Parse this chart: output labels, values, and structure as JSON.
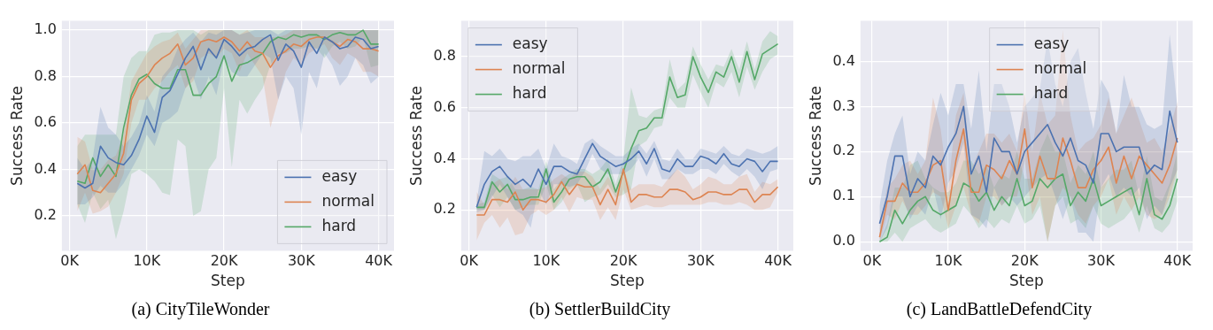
{
  "chart_data": [
    {
      "type": "line",
      "title": "(a) CityTileWonder",
      "xlabel": "Step",
      "ylabel": "Success Rate",
      "grid": true,
      "legend": "bottom right",
      "marker": "none",
      "line_style": "solid",
      "xlim": [
        -1000,
        42000
      ],
      "xticks": [
        {
          "value": 0,
          "label": "0K"
        },
        {
          "value": 10000,
          "label": "10K"
        },
        {
          "value": 20000,
          "label": "20K"
        },
        {
          "value": 30000,
          "label": "30K"
        },
        {
          "value": 40000,
          "label": "40K"
        }
      ],
      "ylim": [
        0.05,
        1.04
      ],
      "yticks": [
        0.2,
        0.4,
        0.6,
        0.8,
        {
          "value": 1,
          "label": "1.0"
        }
      ],
      "x": [
        1000,
        2000,
        3000,
        4000,
        5000,
        6000,
        7000,
        8000,
        9000,
        10000,
        11000,
        12000,
        13000,
        14000,
        15000,
        16000,
        17000,
        18000,
        19000,
        20000,
        21000,
        22000,
        23000,
        24000,
        25000,
        26000,
        27000,
        28000,
        29000,
        30000,
        31000,
        32000,
        33000,
        34000,
        35000,
        36000,
        37000,
        38000,
        39000,
        40000
      ],
      "series": [
        {
          "name": "easy",
          "color": "#4c72b0",
          "values": [
            0.34,
            0.32,
            0.34,
            0.5,
            0.45,
            0.43,
            0.42,
            0.46,
            0.53,
            0.63,
            0.56,
            0.71,
            0.74,
            0.81,
            0.88,
            0.93,
            0.83,
            0.92,
            0.88,
            0.96,
            0.93,
            0.89,
            0.92,
            0.93,
            0.96,
            0.98,
            0.87,
            0.94,
            0.91,
            0.84,
            0.95,
            0.9,
            0.97,
            0.95,
            0.92,
            0.93,
            0.97,
            0.96,
            0.92,
            0.93
          ],
          "lower": [
            0.25,
            0.25,
            0.28,
            0.33,
            0.3,
            0.3,
            0.34,
            0.4,
            0.46,
            0.55,
            0.5,
            0.6,
            0.62,
            0.65,
            0.75,
            0.8,
            0.7,
            0.8,
            0.72,
            0.88,
            0.82,
            0.8,
            0.8,
            0.85,
            0.9,
            0.88,
            0.7,
            0.8,
            0.75,
            0.55,
            0.82,
            0.75,
            0.9,
            0.85,
            0.76,
            0.8,
            0.88,
            0.85,
            0.77,
            0.8
          ],
          "upper": [
            0.45,
            0.4,
            0.45,
            0.67,
            0.58,
            0.55,
            0.5,
            0.54,
            0.6,
            0.72,
            0.65,
            0.8,
            0.84,
            0.92,
            0.96,
            0.99,
            0.95,
            0.99,
            0.98,
            1.0,
            1.0,
            0.98,
            0.99,
            1.0,
            1.0,
            1.0,
            0.98,
            1.0,
            1.0,
            1.0,
            1.0,
            1.0,
            1.0,
            1.0,
            1.0,
            1.0,
            1.0,
            1.0,
            1.0,
            1.0
          ]
        },
        {
          "name": "normal",
          "color": "#dd8452",
          "values": [
            0.38,
            0.42,
            0.31,
            0.3,
            0.34,
            0.38,
            0.47,
            0.7,
            0.77,
            0.8,
            0.85,
            0.88,
            0.9,
            0.94,
            0.85,
            0.88,
            0.95,
            0.96,
            0.95,
            0.97,
            0.95,
            0.91,
            0.95,
            0.91,
            0.9,
            0.84,
            0.89,
            0.91,
            0.94,
            0.93,
            0.96,
            0.97,
            0.97,
            0.95,
            0.93,
            0.96,
            0.95,
            0.92,
            0.92,
            0.91
          ],
          "lower": [
            0.22,
            0.3,
            0.21,
            0.22,
            0.24,
            0.3,
            0.38,
            0.6,
            0.7,
            0.7,
            0.75,
            0.78,
            0.82,
            0.85,
            0.75,
            0.78,
            0.88,
            0.9,
            0.88,
            0.92,
            0.9,
            0.82,
            0.9,
            0.85,
            0.8,
            0.58,
            0.7,
            0.82,
            0.88,
            0.85,
            0.9,
            0.92,
            0.94,
            0.88,
            0.85,
            0.9,
            0.88,
            0.82,
            0.82,
            0.8
          ],
          "upper": [
            0.54,
            0.52,
            0.4,
            0.4,
            0.44,
            0.46,
            0.55,
            0.78,
            0.84,
            0.9,
            0.93,
            0.95,
            0.96,
            0.99,
            0.92,
            0.96,
            1.0,
            1.0,
            1.0,
            1.0,
            1.0,
            0.98,
            1.0,
            0.97,
            0.97,
            0.97,
            0.97,
            0.98,
            1.0,
            1.0,
            1.0,
            1.0,
            1.0,
            1.0,
            1.0,
            1.0,
            1.0,
            1.0,
            1.0,
            1.0
          ]
        },
        {
          "name": "hard",
          "color": "#55a868",
          "values": [
            0.35,
            0.34,
            0.45,
            0.37,
            0.42,
            0.37,
            0.58,
            0.72,
            0.79,
            0.81,
            0.77,
            0.75,
            0.75,
            0.83,
            0.83,
            0.72,
            0.72,
            0.77,
            0.8,
            0.89,
            0.78,
            0.85,
            0.86,
            0.88,
            0.9,
            0.95,
            0.97,
            0.96,
            0.98,
            0.97,
            0.98,
            0.98,
            0.96,
            0.98,
            0.99,
            0.98,
            0.98,
            1.0,
            0.94,
            0.94
          ],
          "lower": [
            0.25,
            0.17,
            0.3,
            0.23,
            0.27,
            0.1,
            0.22,
            0.38,
            0.4,
            0.38,
            0.35,
            0.3,
            0.29,
            0.53,
            0.5,
            0.2,
            0.22,
            0.4,
            0.45,
            0.75,
            0.41,
            0.7,
            0.64,
            0.7,
            0.75,
            0.85,
            0.9,
            0.9,
            0.92,
            0.92,
            0.93,
            0.92,
            0.88,
            0.93,
            0.95,
            0.92,
            0.93,
            0.97,
            0.84,
            0.85
          ],
          "upper": [
            0.5,
            0.55,
            0.55,
            0.55,
            0.55,
            0.55,
            0.8,
            0.88,
            0.91,
            0.91,
            0.98,
            0.99,
            0.99,
            1.0,
            1.0,
            1.0,
            0.98,
            1.0,
            1.0,
            1.0,
            1.0,
            1.0,
            1.0,
            1.0,
            1.0,
            1.0,
            1.0,
            1.0,
            1.0,
            1.0,
            1.0,
            1.0,
            1.0,
            1.0,
            1.0,
            1.0,
            1.0,
            1.0,
            1.0,
            1.0
          ]
        }
      ]
    },
    {
      "type": "line",
      "title": "(b) SettlerBuildCity",
      "xlabel": "Step",
      "ylabel": "Success Rate",
      "grid": true,
      "legend": "top left",
      "marker": "none",
      "line_style": "solid",
      "xlim": [
        -1000,
        42000
      ],
      "xticks": [
        {
          "value": 0,
          "label": "0K"
        },
        {
          "value": 10000,
          "label": "10K"
        },
        {
          "value": 20000,
          "label": "20K"
        },
        {
          "value": 30000,
          "label": "30K"
        },
        {
          "value": 40000,
          "label": "40K"
        }
      ],
      "ylim": [
        0.04,
        0.94
      ],
      "yticks": [
        0.2,
        0.4,
        0.6,
        0.8
      ],
      "x": [
        1000,
        2000,
        3000,
        4000,
        5000,
        6000,
        7000,
        8000,
        9000,
        10000,
        11000,
        12000,
        13000,
        14000,
        15000,
        16000,
        17000,
        18000,
        19000,
        20000,
        21000,
        22000,
        23000,
        24000,
        25000,
        26000,
        27000,
        28000,
        29000,
        30000,
        31000,
        32000,
        33000,
        34000,
        35000,
        36000,
        37000,
        38000,
        39000,
        40000
      ],
      "series": [
        {
          "name": "easy",
          "color": "#4c72b0",
          "values": [
            0.21,
            0.3,
            0.35,
            0.37,
            0.33,
            0.3,
            0.32,
            0.29,
            0.36,
            0.3,
            0.37,
            0.37,
            0.35,
            0.34,
            0.4,
            0.46,
            0.41,
            0.39,
            0.37,
            0.38,
            0.4,
            0.43,
            0.38,
            0.44,
            0.36,
            0.35,
            0.4,
            0.37,
            0.37,
            0.41,
            0.4,
            0.38,
            0.42,
            0.38,
            0.37,
            0.4,
            0.39,
            0.35,
            0.39,
            0.39
          ],
          "lower": [
            0.19,
            0.2,
            0.25,
            0.3,
            0.25,
            0.2,
            0.18,
            0.13,
            0.28,
            0.22,
            0.3,
            0.3,
            0.29,
            0.3,
            0.35,
            0.42,
            0.36,
            0.34,
            0.34,
            0.34,
            0.36,
            0.4,
            0.33,
            0.4,
            0.32,
            0.32,
            0.36,
            0.34,
            0.34,
            0.36,
            0.36,
            0.34,
            0.38,
            0.35,
            0.33,
            0.36,
            0.33,
            0.28,
            0.35,
            0.36
          ],
          "upper": [
            0.23,
            0.43,
            0.41,
            0.44,
            0.4,
            0.39,
            0.41,
            0.41,
            0.44,
            0.36,
            0.46,
            0.41,
            0.4,
            0.38,
            0.46,
            0.48,
            0.45,
            0.43,
            0.41,
            0.41,
            0.44,
            0.46,
            0.42,
            0.47,
            0.4,
            0.39,
            0.44,
            0.4,
            0.4,
            0.44,
            0.43,
            0.42,
            0.45,
            0.42,
            0.41,
            0.44,
            0.43,
            0.42,
            0.43,
            0.45
          ]
        },
        {
          "name": "normal",
          "color": "#dd8452",
          "values": [
            0.18,
            0.18,
            0.24,
            0.24,
            0.23,
            0.27,
            0.2,
            0.24,
            0.24,
            0.23,
            0.26,
            0.31,
            0.26,
            0.3,
            0.29,
            0.29,
            0.22,
            0.28,
            0.22,
            0.36,
            0.23,
            0.26,
            0.26,
            0.25,
            0.25,
            0.28,
            0.28,
            0.27,
            0.24,
            0.25,
            0.27,
            0.27,
            0.26,
            0.26,
            0.28,
            0.28,
            0.23,
            0.26,
            0.26,
            0.29
          ],
          "lower": [
            0.08,
            0.15,
            0.18,
            0.13,
            0.17,
            0.1,
            0.11,
            0.18,
            0.2,
            0.18,
            0.2,
            0.25,
            0.19,
            0.25,
            0.24,
            0.24,
            0.16,
            0.21,
            0.16,
            0.28,
            0.2,
            0.21,
            0.22,
            0.21,
            0.21,
            0.22,
            0.22,
            0.22,
            0.22,
            0.22,
            0.23,
            0.23,
            0.22,
            0.22,
            0.23,
            0.22,
            0.2,
            0.2,
            0.21,
            0.27
          ],
          "upper": [
            0.27,
            0.22,
            0.3,
            0.32,
            0.28,
            0.33,
            0.28,
            0.28,
            0.28,
            0.29,
            0.32,
            0.34,
            0.32,
            0.35,
            0.35,
            0.33,
            0.28,
            0.33,
            0.28,
            0.36,
            0.28,
            0.3,
            0.3,
            0.3,
            0.29,
            0.33,
            0.36,
            0.33,
            0.28,
            0.3,
            0.33,
            0.32,
            0.3,
            0.3,
            0.33,
            0.34,
            0.27,
            0.31,
            0.3,
            0.32
          ]
        },
        {
          "name": "hard",
          "color": "#55a868",
          "values": [
            0.21,
            0.21,
            0.31,
            0.27,
            0.3,
            0.24,
            0.24,
            0.25,
            0.25,
            0.36,
            0.23,
            0.27,
            0.32,
            0.33,
            0.33,
            0.29,
            0.31,
            0.36,
            0.27,
            0.35,
            0.44,
            0.51,
            0.52,
            0.56,
            0.56,
            0.72,
            0.64,
            0.65,
            0.8,
            0.72,
            0.66,
            0.74,
            0.72,
            0.8,
            0.7,
            0.82,
            0.71,
            0.81,
            0.83,
            0.85
          ],
          "lower": [
            0.2,
            0.2,
            0.26,
            0.21,
            0.25,
            0.2,
            0.21,
            0.22,
            0.22,
            0.3,
            0.2,
            0.23,
            0.28,
            0.3,
            0.23,
            0.25,
            0.26,
            0.3,
            0.25,
            0.26,
            0.28,
            0.45,
            0.47,
            0.52,
            0.53,
            0.64,
            0.6,
            0.6,
            0.73,
            0.66,
            0.6,
            0.7,
            0.68,
            0.74,
            0.64,
            0.76,
            0.67,
            0.74,
            0.79,
            0.81
          ],
          "upper": [
            0.22,
            0.23,
            0.34,
            0.32,
            0.33,
            0.28,
            0.28,
            0.29,
            0.28,
            0.39,
            0.28,
            0.32,
            0.34,
            0.36,
            0.36,
            0.34,
            0.36,
            0.4,
            0.3,
            0.4,
            0.68,
            0.57,
            0.56,
            0.59,
            0.6,
            0.79,
            0.67,
            0.7,
            0.84,
            0.77,
            0.71,
            0.77,
            0.76,
            0.83,
            0.75,
            0.86,
            0.75,
            0.86,
            0.9,
            0.88
          ]
        }
      ]
    },
    {
      "type": "line",
      "title": "(c) LandBattleDefendCity",
      "xlabel": "Step",
      "ylabel": "Success Rate",
      "grid": true,
      "legend": "top",
      "marker": "none",
      "line_style": "solid",
      "xlim": [
        -1500,
        42000
      ],
      "xticks": [
        {
          "value": 0,
          "label": "0K"
        },
        {
          "value": 10000,
          "label": "10K"
        },
        {
          "value": 20000,
          "label": "20K"
        },
        {
          "value": 30000,
          "label": "30K"
        },
        {
          "value": 40000,
          "label": "40K"
        }
      ],
      "ylim": [
        -0.02,
        0.49
      ],
      "yticks": [
        {
          "value": 0,
          "label": "0.0"
        },
        0.1,
        0.2,
        0.3,
        0.4
      ],
      "x": [
        1000,
        2000,
        3000,
        4000,
        5000,
        6000,
        7000,
        8000,
        9000,
        10000,
        11000,
        12000,
        13000,
        14000,
        15000,
        16000,
        17000,
        18000,
        19000,
        20000,
        21000,
        22000,
        23000,
        24000,
        25000,
        26000,
        27000,
        28000,
        29000,
        30000,
        31000,
        32000,
        33000,
        34000,
        35000,
        36000,
        37000,
        38000,
        39000,
        40000
      ],
      "series": [
        {
          "name": "easy",
          "color": "#4c72b0",
          "values": [
            0.04,
            0.1,
            0.19,
            0.19,
            0.1,
            0.14,
            0.12,
            0.19,
            0.17,
            0.21,
            0.24,
            0.3,
            0.15,
            0.19,
            0.11,
            0.23,
            0.2,
            0.2,
            0.15,
            0.2,
            0.22,
            0.24,
            0.26,
            0.22,
            0.19,
            0.23,
            0.18,
            0.17,
            0.13,
            0.24,
            0.24,
            0.2,
            0.21,
            0.21,
            0.21,
            0.15,
            0.17,
            0.16,
            0.29,
            0.22
          ],
          "lower": [
            0.0,
            0.03,
            0.1,
            0.1,
            0.05,
            0.08,
            0.06,
            0.12,
            0.05,
            0.13,
            0.16,
            0.22,
            0.06,
            0.05,
            0.03,
            0.12,
            0.08,
            0.1,
            0.08,
            0.1,
            0.12,
            0.14,
            0.15,
            0.1,
            0.05,
            0.1,
            0.02,
            0.02,
            0.0,
            0.12,
            0.15,
            0.1,
            0.12,
            0.1,
            0.12,
            0.05,
            0.08,
            0.06,
            0.12,
            0.16
          ],
          "upper": [
            0.08,
            0.18,
            0.24,
            0.28,
            0.15,
            0.2,
            0.18,
            0.26,
            0.33,
            0.28,
            0.35,
            0.35,
            0.25,
            0.38,
            0.2,
            0.35,
            0.35,
            0.3,
            0.22,
            0.3,
            0.32,
            0.34,
            0.45,
            0.35,
            0.3,
            0.4,
            0.43,
            0.33,
            0.25,
            0.36,
            0.33,
            0.24,
            0.37,
            0.3,
            0.3,
            0.26,
            0.25,
            0.26,
            0.46,
            0.3
          ]
        },
        {
          "name": "normal",
          "color": "#dd8452",
          "values": [
            0.01,
            0.09,
            0.09,
            0.13,
            0.11,
            0.11,
            0.13,
            0.17,
            0.18,
            0.07,
            0.18,
            0.25,
            0.11,
            0.11,
            0.17,
            0.16,
            0.14,
            0.18,
            0.15,
            0.25,
            0.12,
            0.19,
            0.14,
            0.14,
            0.23,
            0.18,
            0.12,
            0.12,
            0.16,
            0.18,
            0.21,
            0.13,
            0.19,
            0.14,
            0.19,
            0.17,
            0.15,
            0.13,
            0.17,
            0.23
          ],
          "lower": [
            0.0,
            0.06,
            0.05,
            0.09,
            0.06,
            0.06,
            0.08,
            0.11,
            0.1,
            0.03,
            0.08,
            0.12,
            0.06,
            0.04,
            0.1,
            0.1,
            0.08,
            0.1,
            0.1,
            0.18,
            0.06,
            0.1,
            0.0,
            0.08,
            0.12,
            0.1,
            0.06,
            0.04,
            0.08,
            0.1,
            0.14,
            0.06,
            0.1,
            0.07,
            0.1,
            0.06,
            0.05,
            0.06,
            0.1,
            0.16
          ],
          "upper": [
            0.03,
            0.12,
            0.14,
            0.17,
            0.18,
            0.15,
            0.18,
            0.32,
            0.25,
            0.12,
            0.28,
            0.33,
            0.16,
            0.2,
            0.24,
            0.24,
            0.22,
            0.24,
            0.2,
            0.33,
            0.2,
            0.33,
            0.26,
            0.28,
            0.47,
            0.28,
            0.2,
            0.22,
            0.23,
            0.26,
            0.32,
            0.24,
            0.28,
            0.32,
            0.27,
            0.22,
            0.23,
            0.2,
            0.25,
            0.31
          ]
        },
        {
          "name": "hard",
          "color": "#55a868",
          "values": [
            0.0,
            0.01,
            0.07,
            0.04,
            0.07,
            0.09,
            0.1,
            0.07,
            0.06,
            0.07,
            0.08,
            0.13,
            0.12,
            0.09,
            0.11,
            0.07,
            0.1,
            0.08,
            0.14,
            0.08,
            0.09,
            0.14,
            0.12,
            0.14,
            0.15,
            0.08,
            0.11,
            0.09,
            0.14,
            0.08,
            0.09,
            0.1,
            0.11,
            0.12,
            0.06,
            0.14,
            0.06,
            0.05,
            0.08,
            0.14
          ],
          "lower": [
            0.0,
            0.0,
            0.02,
            0.0,
            0.03,
            0.04,
            0.05,
            0.03,
            0.02,
            0.03,
            0.04,
            0.08,
            0.06,
            0.03,
            0.05,
            0.03,
            0.05,
            0.04,
            0.08,
            0.04,
            0.05,
            0.08,
            0.0,
            0.08,
            0.1,
            0.04,
            0.05,
            0.03,
            0.08,
            0.04,
            0.03,
            0.04,
            0.05,
            0.07,
            0.02,
            0.08,
            0.03,
            0.02,
            0.04,
            0.09
          ],
          "upper": [
            0.0,
            0.04,
            0.12,
            0.12,
            0.17,
            0.18,
            0.14,
            0.12,
            0.11,
            0.11,
            0.13,
            0.18,
            0.18,
            0.15,
            0.17,
            0.12,
            0.15,
            0.14,
            0.2,
            0.14,
            0.14,
            0.2,
            0.24,
            0.2,
            0.2,
            0.13,
            0.17,
            0.15,
            0.2,
            0.12,
            0.14,
            0.16,
            0.16,
            0.18,
            0.1,
            0.19,
            0.1,
            0.09,
            0.13,
            0.2
          ]
        }
      ]
    }
  ]
}
